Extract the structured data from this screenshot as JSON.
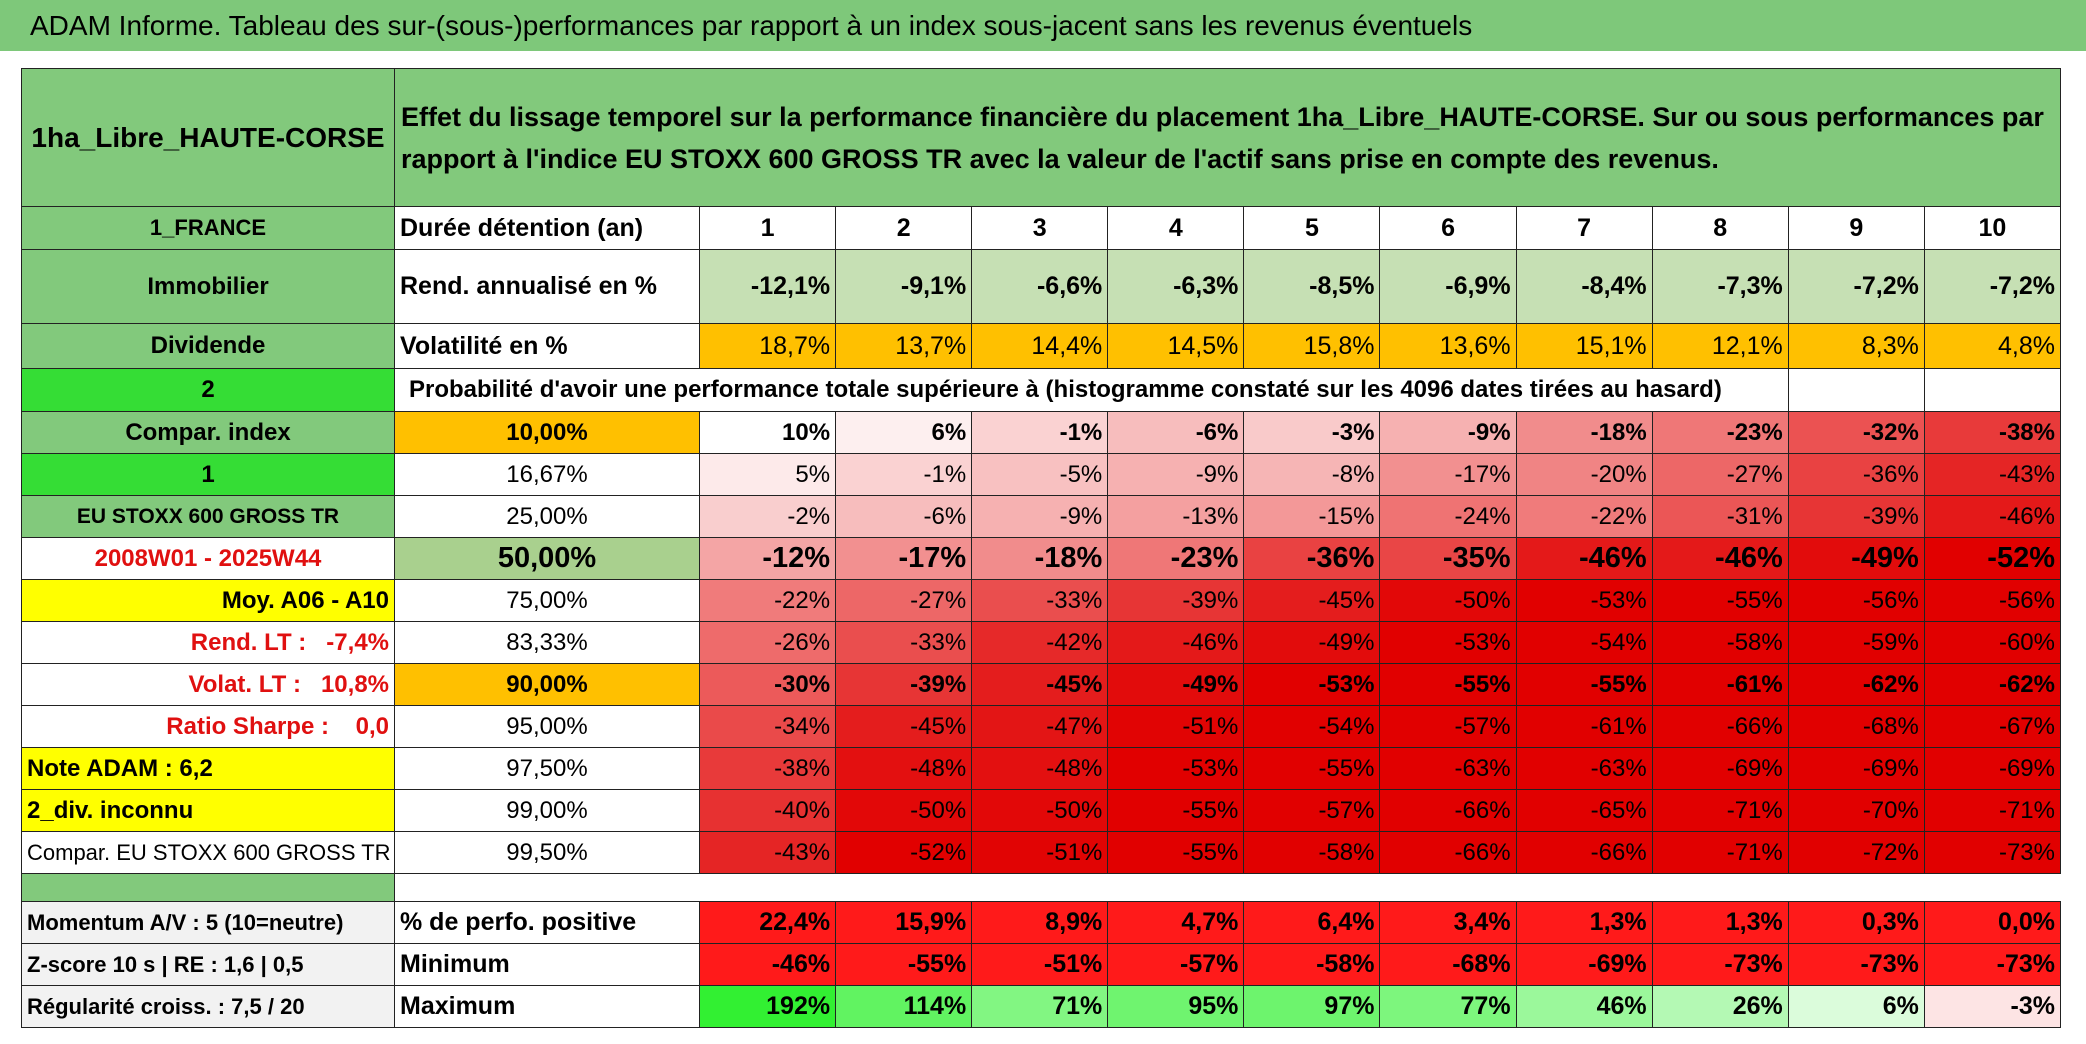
{
  "header": {
    "title": "ADAM Informe. Tableau des sur-(sous-)performances par rapport à un index sous-jacent sans les revenus éventuels"
  },
  "fund": "1ha_Libre_HAUTE-CORSE",
  "description": "Effet du lissage temporel sur la performance financière du placement 1ha_Libre_HAUTE-CORSE. Sur ou sous performances par rapport à l'indice EU STOXX 600 GROSS TR avec la valeur de l'actif sans prise en compte des revenus.",
  "left_labels": [
    "1_FRANCE",
    "Immobilier",
    "Dividende",
    "2",
    "Compar. index",
    "1",
    "EU STOXX 600 GROSS TR",
    "2008W01 - 2025W44",
    "Moy. A06 - A10",
    "Rend. LT :   -7,4%",
    "Volat. LT :   10,8%",
    "Ratio Sharpe :    0,0",
    "Note ADAM : 6,2",
    "2_div. inconnu",
    "Compar. EU STOXX 600 GROSS TR"
  ],
  "stats": {
    "holding_label": "Durée détention (an)",
    "years": [
      1,
      2,
      3,
      4,
      5,
      6,
      7,
      8,
      9,
      10
    ],
    "return": {
      "label": "Rend. annualisé en %",
      "values": [
        "-12,1%",
        "-9,1%",
        "-6,6%",
        "-6,3%",
        "-8,5%",
        "-6,9%",
        "-8,4%",
        "-7,3%",
        "-7,2%",
        "-7,2%"
      ]
    },
    "volatility": {
      "label": "Volatilité en %",
      "values": [
        "18,7%",
        "13,7%",
        "14,4%",
        "14,5%",
        "15,8%",
        "13,6%",
        "15,1%",
        "12,1%",
        "8,3%",
        "4,8%"
      ]
    }
  },
  "probability_title": "Probabilité d'avoir une performance totale supérieure à (histogramme constaté sur les 4096 dates tirées au hasard)",
  "quantiles": [
    {
      "level": "10,00%",
      "values": [
        "10%",
        "6%",
        "-1%",
        "-6%",
        "-3%",
        "-9%",
        "-18%",
        "-23%",
        "-32%",
        "-38%"
      ]
    },
    {
      "level": "16,67%",
      "values": [
        "5%",
        "-1%",
        "-5%",
        "-9%",
        "-8%",
        "-17%",
        "-20%",
        "-27%",
        "-36%",
        "-43%"
      ]
    },
    {
      "level": "25,00%",
      "values": [
        "-2%",
        "-6%",
        "-9%",
        "-13%",
        "-15%",
        "-24%",
        "-22%",
        "-31%",
        "-39%",
        "-46%"
      ]
    },
    {
      "level": "50,00%",
      "values": [
        "-12%",
        "-17%",
        "-18%",
        "-23%",
        "-36%",
        "-35%",
        "-46%",
        "-46%",
        "-49%",
        "-52%"
      ]
    },
    {
      "level": "75,00%",
      "values": [
        "-22%",
        "-27%",
        "-33%",
        "-39%",
        "-45%",
        "-50%",
        "-53%",
        "-55%",
        "-56%",
        "-56%"
      ]
    },
    {
      "level": "83,33%",
      "values": [
        "-26%",
        "-33%",
        "-42%",
        "-46%",
        "-49%",
        "-53%",
        "-54%",
        "-58%",
        "-59%",
        "-60%"
      ]
    },
    {
      "level": "90,00%",
      "values": [
        "-30%",
        "-39%",
        "-45%",
        "-49%",
        "-53%",
        "-55%",
        "-55%",
        "-61%",
        "-62%",
        "-62%"
      ]
    },
    {
      "level": "95,00%",
      "values": [
        "-34%",
        "-45%",
        "-47%",
        "-51%",
        "-54%",
        "-57%",
        "-61%",
        "-66%",
        "-68%",
        "-67%"
      ]
    },
    {
      "level": "97,50%",
      "values": [
        "-38%",
        "-48%",
        "-48%",
        "-53%",
        "-55%",
        "-63%",
        "-63%",
        "-69%",
        "-69%",
        "-69%"
      ]
    },
    {
      "level": "99,00%",
      "values": [
        "-40%",
        "-50%",
        "-50%",
        "-55%",
        "-57%",
        "-66%",
        "-65%",
        "-71%",
        "-70%",
        "-71%"
      ]
    },
    {
      "level": "99,50%",
      "values": [
        "-43%",
        "-52%",
        "-51%",
        "-55%",
        "-58%",
        "-66%",
        "-66%",
        "-71%",
        "-72%",
        "-73%"
      ]
    }
  ],
  "footer": [
    {
      "left": "Momentum A/V : 5 (10=neutre)",
      "label": "% de perfo. positive",
      "values": [
        "22,4%",
        "15,9%",
        "8,9%",
        "4,7%",
        "6,4%",
        "3,4%",
        "1,3%",
        "1,3%",
        "0,3%",
        "0,0%"
      ]
    },
    {
      "left": "Z-score 10 s | RE : 1,6 | 0,5",
      "label": "Minimum",
      "values": [
        "-46%",
        "-55%",
        "-51%",
        "-57%",
        "-58%",
        "-68%",
        "-69%",
        "-73%",
        "-73%",
        "-73%"
      ]
    },
    {
      "left": "Régularité croiss. : 7,5 / 20",
      "label": "Maximum",
      "values": [
        "192%",
        "114%",
        "71%",
        "95%",
        "97%",
        "77%",
        "46%",
        "26%",
        "6%",
        "-3%"
      ]
    }
  ]
}
